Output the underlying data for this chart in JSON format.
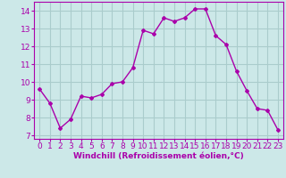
{
  "x": [
    0,
    1,
    2,
    3,
    4,
    5,
    6,
    7,
    8,
    9,
    10,
    11,
    12,
    13,
    14,
    15,
    16,
    17,
    18,
    19,
    20,
    21,
    22,
    23
  ],
  "y": [
    9.6,
    8.8,
    7.4,
    7.9,
    9.2,
    9.1,
    9.3,
    9.9,
    10.0,
    10.8,
    12.9,
    12.7,
    13.6,
    13.4,
    13.6,
    14.1,
    14.1,
    12.6,
    12.1,
    10.6,
    9.5,
    8.5,
    8.4,
    7.3
  ],
  "line_color": "#aa00aa",
  "marker": "D",
  "marker_size": 2,
  "bg_color": "#cce8e8",
  "grid_color": "#aacccc",
  "xlabel": "Windchill (Refroidissement éolien,°C)",
  "xlabel_color": "#aa00aa",
  "tick_color": "#aa00aa",
  "spine_color": "#aa00aa",
  "ylim": [
    6.8,
    14.5
  ],
  "xlim": [
    -0.5,
    23.5
  ],
  "yticks": [
    7,
    8,
    9,
    10,
    11,
    12,
    13,
    14
  ],
  "xticks": [
    0,
    1,
    2,
    3,
    4,
    5,
    6,
    7,
    8,
    9,
    10,
    11,
    12,
    13,
    14,
    15,
    16,
    17,
    18,
    19,
    20,
    21,
    22,
    23
  ],
  "xlabel_fontsize": 6.5,
  "tick_fontsize": 6.5
}
